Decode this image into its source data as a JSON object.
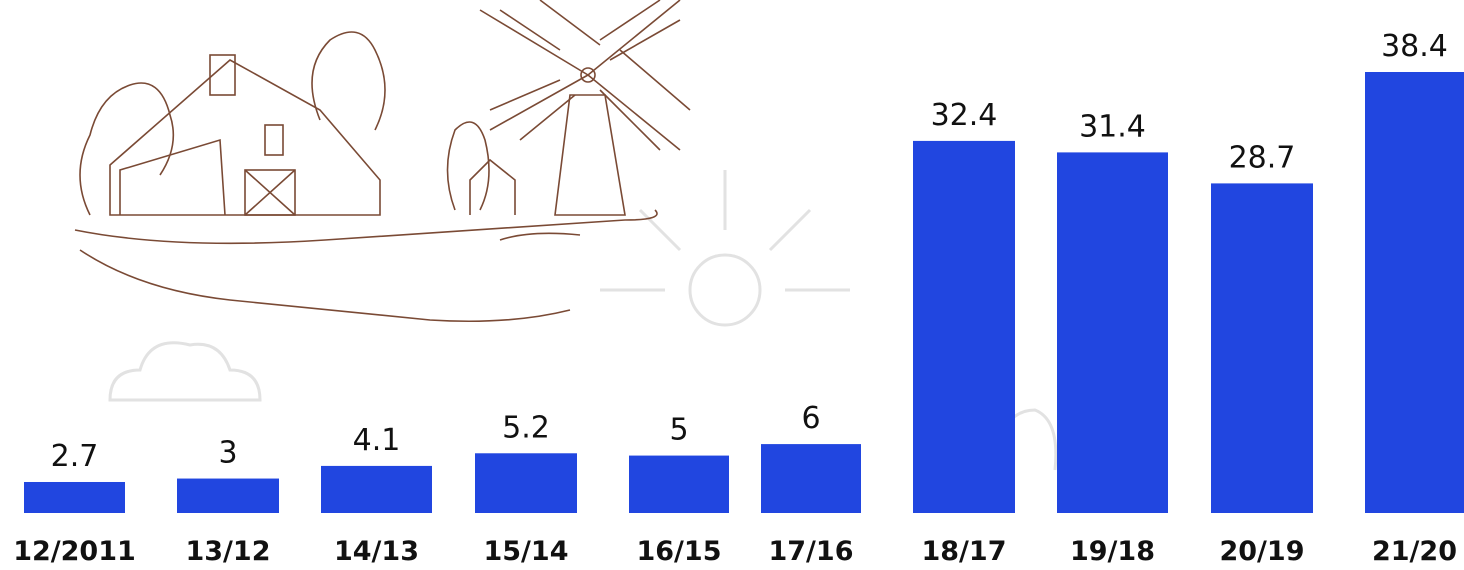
{
  "chart_data": {
    "type": "bar",
    "categories": [
      "12/2011",
      "13/12",
      "14/13",
      "15/14",
      "16/15",
      "17/16",
      "18/17",
      "19/18",
      "20/19",
      "21/20"
    ],
    "values": [
      2.7,
      3,
      4.1,
      5.2,
      5,
      6,
      32.4,
      31.4,
      28.7,
      38.4
    ],
    "color": "#2146e0"
  }
}
